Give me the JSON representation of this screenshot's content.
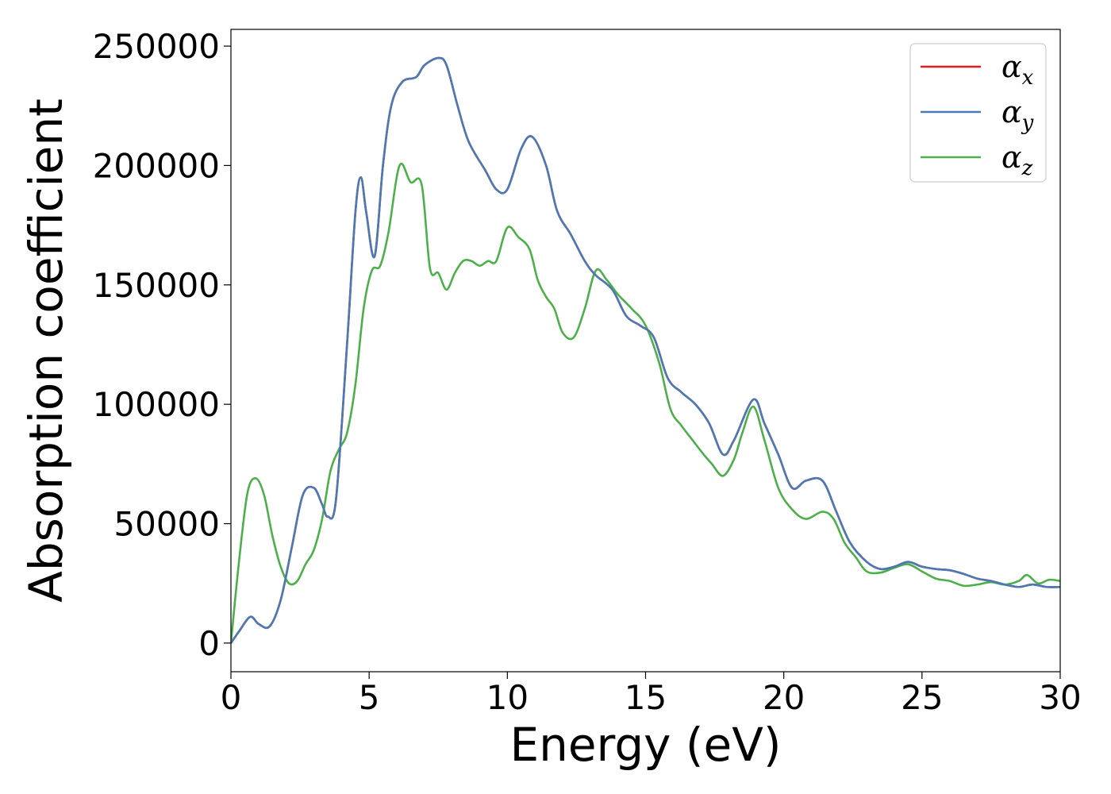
{
  "chart_data": {
    "type": "line",
    "title": "",
    "xlabel": "Energy (eV)",
    "ylabel": "Absorption coefficient",
    "xlim": [
      0,
      30
    ],
    "ylim": [
      -12000,
      257000
    ],
    "xticks": [
      0,
      5,
      10,
      15,
      20,
      25,
      30
    ],
    "yticks": [
      0,
      50000,
      100000,
      150000,
      200000,
      250000
    ],
    "grid": false,
    "legend_position": "top-right",
    "series": [
      {
        "name": "α_x",
        "legend_base": "α",
        "legend_sub": "x",
        "color": "#e41a1c",
        "x": [
          0,
          0.3,
          0.7,
          1.0,
          1.4,
          1.8,
          2.2,
          2.6,
          3.0,
          3.3,
          3.5,
          3.8,
          4.2,
          4.5,
          4.7,
          4.9,
          5.2,
          5.5,
          5.8,
          6.2,
          6.7,
          7.0,
          7.5,
          7.8,
          8.2,
          8.6,
          9.2,
          9.6,
          10.0,
          10.5,
          10.9,
          11.4,
          11.8,
          12.3,
          12.8,
          13.2,
          13.8,
          14.3,
          14.8,
          15.3,
          15.8,
          16.3,
          16.8,
          17.3,
          17.8,
          18.2,
          18.9,
          19.3,
          19.8,
          20.3,
          20.8,
          21.4,
          21.9,
          22.4,
          23.0,
          23.5,
          24.0,
          24.5,
          25.0,
          25.5,
          26.0,
          26.5,
          27.0,
          27.5,
          28.0,
          28.5,
          29.0,
          29.5,
          30.0
        ],
        "values": [
          0,
          5000,
          11000,
          8000,
          7000,
          18000,
          40000,
          62000,
          65000,
          58000,
          53000,
          60000,
          125000,
          180000,
          195000,
          180000,
          162000,
          200000,
          225000,
          235000,
          237000,
          242000,
          245000,
          242000,
          225000,
          210000,
          198000,
          190000,
          190000,
          207000,
          212000,
          200000,
          181000,
          171000,
          160000,
          154000,
          148000,
          137000,
          133000,
          128000,
          111000,
          105000,
          100000,
          92000,
          79000,
          85000,
          102000,
          92000,
          79000,
          65000,
          68000,
          68000,
          55000,
          42000,
          34000,
          31000,
          32000,
          34000,
          32000,
          31000,
          30500,
          29000,
          27000,
          26000,
          24500,
          23500,
          24500,
          23500,
          23500
        ]
      },
      {
        "name": "α_y",
        "legend_base": "α",
        "legend_sub": "y",
        "color": "#4a7ab5",
        "x": [
          0,
          0.3,
          0.7,
          1.0,
          1.4,
          1.8,
          2.2,
          2.6,
          3.0,
          3.3,
          3.5,
          3.8,
          4.2,
          4.5,
          4.7,
          4.9,
          5.2,
          5.5,
          5.8,
          6.2,
          6.7,
          7.0,
          7.5,
          7.8,
          8.2,
          8.6,
          9.2,
          9.6,
          10.0,
          10.5,
          10.9,
          11.4,
          11.8,
          12.3,
          12.8,
          13.2,
          13.8,
          14.3,
          14.8,
          15.3,
          15.8,
          16.3,
          16.8,
          17.3,
          17.8,
          18.2,
          18.9,
          19.3,
          19.8,
          20.3,
          20.8,
          21.4,
          21.9,
          22.4,
          23.0,
          23.5,
          24.0,
          24.5,
          25.0,
          25.5,
          26.0,
          26.5,
          27.0,
          27.5,
          28.0,
          28.5,
          29.0,
          29.5,
          30.0
        ],
        "values": [
          0,
          5000,
          11000,
          8000,
          7000,
          18000,
          40000,
          62000,
          65000,
          58000,
          53000,
          60000,
          125000,
          180000,
          195000,
          180000,
          162000,
          200000,
          225000,
          235000,
          237000,
          242000,
          245000,
          242000,
          225000,
          210000,
          198000,
          190000,
          190000,
          207000,
          212000,
          200000,
          181000,
          171000,
          160000,
          154000,
          148000,
          137000,
          133000,
          128000,
          111000,
          105000,
          100000,
          92000,
          79000,
          85000,
          102000,
          92000,
          79000,
          65000,
          68000,
          68000,
          55000,
          42000,
          34000,
          31000,
          32000,
          34000,
          32000,
          31000,
          30500,
          29000,
          27000,
          26000,
          24500,
          23500,
          24500,
          23500,
          23500
        ]
      },
      {
        "name": "α_z",
        "legend_base": "α",
        "legend_sub": "z",
        "color": "#4daf4a",
        "x": [
          0,
          0.3,
          0.6,
          0.9,
          1.2,
          1.5,
          1.8,
          2.1,
          2.4,
          2.7,
          3.0,
          3.3,
          3.6,
          3.9,
          4.2,
          4.5,
          4.8,
          5.1,
          5.4,
          5.7,
          6.1,
          6.5,
          6.9,
          7.2,
          7.5,
          7.8,
          8.1,
          8.4,
          8.7,
          9.0,
          9.3,
          9.6,
          10.0,
          10.4,
          10.8,
          11.1,
          11.4,
          11.7,
          12.0,
          12.4,
          12.8,
          13.2,
          13.6,
          14.0,
          14.5,
          15.0,
          15.5,
          15.9,
          16.3,
          16.7,
          17.1,
          17.4,
          17.8,
          18.2,
          18.5,
          18.9,
          19.3,
          19.8,
          20.3,
          20.8,
          21.4,
          21.8,
          22.2,
          22.6,
          23.0,
          23.5,
          24.0,
          24.5,
          25.0,
          25.5,
          26.0,
          26.5,
          27.0,
          27.5,
          28.0,
          28.5,
          28.8,
          29.2,
          29.6,
          30.0
        ],
        "values": [
          0,
          35000,
          63000,
          69000,
          62000,
          45000,
          32000,
          25000,
          26000,
          33000,
          39000,
          52000,
          72000,
          81000,
          88000,
          108000,
          140000,
          156000,
          158000,
          172000,
          200000,
          193000,
          192000,
          157000,
          155000,
          148000,
          155000,
          160000,
          160000,
          158000,
          160000,
          160000,
          174000,
          170000,
          165000,
          152000,
          145000,
          140000,
          130000,
          128000,
          140000,
          156000,
          152000,
          146000,
          140000,
          133000,
          117000,
          98000,
          91000,
          85000,
          79000,
          75000,
          70000,
          77000,
          88000,
          99000,
          85000,
          65000,
          56000,
          52000,
          55000,
          52000,
          42000,
          36000,
          30000,
          29500,
          31500,
          33000,
          30000,
          27000,
          26000,
          24000,
          24500,
          25500,
          24500,
          26000,
          28500,
          25000,
          26500,
          26000
        ]
      }
    ]
  }
}
